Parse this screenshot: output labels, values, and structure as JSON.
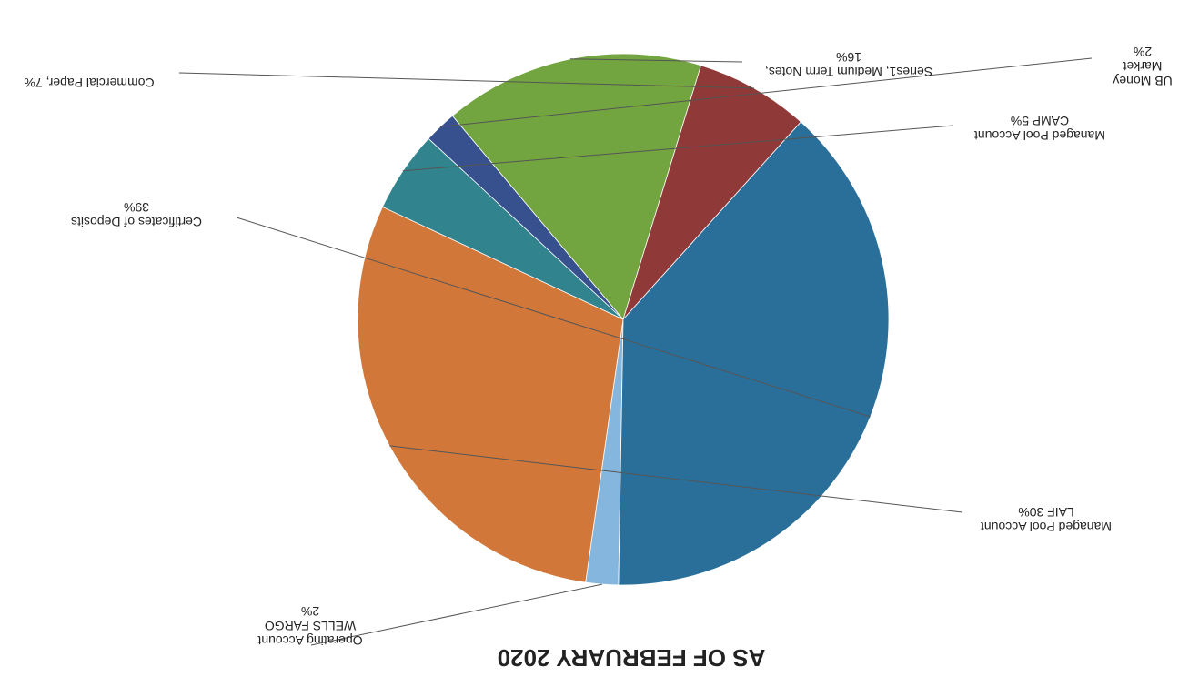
{
  "chart_data": {
    "type": "pie",
    "title": "AS OF FEBRUARY 2020",
    "orientation": "rotated 180 degrees (image appears upside down)",
    "slices": [
      {
        "name": "Operating Account WELLS FARGO",
        "value": 2,
        "percent_label": "2%",
        "color": "#85b7de",
        "label_lines": [
          "Operating Account",
          "WELLS FARGO",
          "2%"
        ]
      },
      {
        "name": "Managed Pool Account LAIF",
        "value": 30,
        "percent_label": "30%",
        "color": "#d1773a",
        "label_lines": [
          "Managed Pool Account",
          "LAIF 30%"
        ]
      },
      {
        "name": "Managed Pool Account CAMP",
        "value": 5,
        "percent_label": "5%",
        "color": "#31838e",
        "label_lines": [
          "Managed Pool Account",
          "CAMP 5%"
        ]
      },
      {
        "name": "UB Money Market",
        "value": 2,
        "percent_label": "2%",
        "color": "#36518d",
        "label_lines": [
          "UB Money",
          "Market",
          "2%"
        ]
      },
      {
        "name": "Series1, Medium Term Notes",
        "value": 16,
        "percent_label": "16%",
        "color": "#72a43f",
        "label_lines": [
          "Series1, Medium Term Notes,",
          "16%"
        ]
      },
      {
        "name": "Commercial Paper",
        "value": 7,
        "percent_label": "7%",
        "color": "#8f3938",
        "label_lines": [
          "Commercial Paper, 7%"
        ]
      },
      {
        "name": "Certificates of Deposits",
        "value": 39,
        "percent_label": "39%",
        "color": "#2a6f99",
        "label_lines": [
          "Certificates of Deposits",
          "39%"
        ]
      }
    ],
    "legend": "none (labels attached by leader lines)"
  }
}
